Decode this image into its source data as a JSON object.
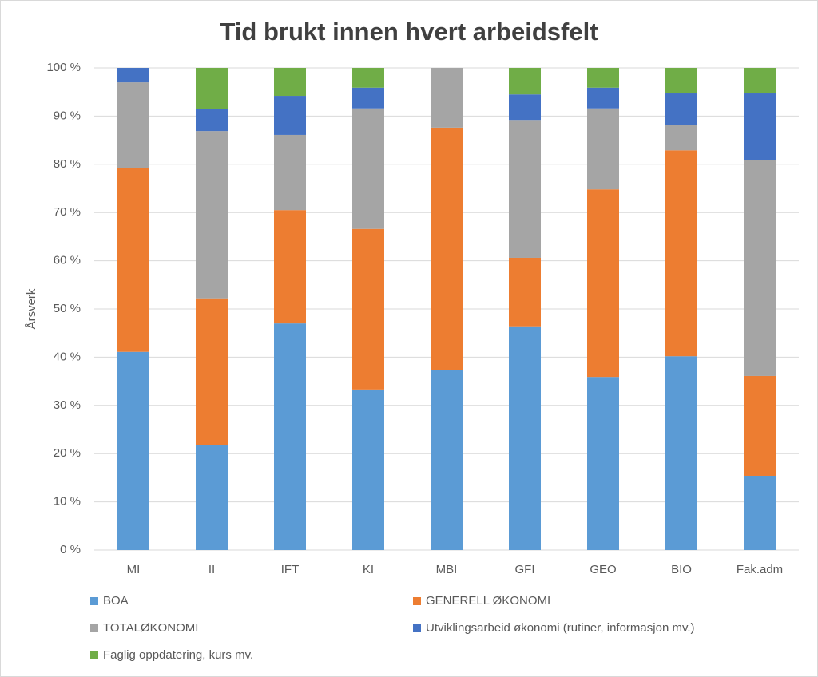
{
  "chart_data": {
    "type": "stacked-bar",
    "title": "Tid brukt innen hvert arbeidsfelt",
    "y_label": "Årsverk",
    "categories": [
      "MI",
      "II",
      "IFT",
      "KI",
      "MBI",
      "GFI",
      "GEO",
      "BIO",
      "Fak.adm"
    ],
    "series": [
      {
        "name": "BOA",
        "color": "#5b9bd5",
        "values": [
          41.1,
          21.7,
          47.0,
          33.3,
          37.4,
          46.4,
          35.9,
          40.2,
          15.4
        ]
      },
      {
        "name": "GENERELL ØKONOMI",
        "color": "#ed7d31",
        "values": [
          38.2,
          30.5,
          23.5,
          33.3,
          50.2,
          14.2,
          38.9,
          42.7,
          20.7
        ]
      },
      {
        "name": "TOTALØKONOMI",
        "color": "#a5a5a5",
        "values": [
          17.7,
          34.7,
          15.6,
          25.0,
          12.4,
          28.6,
          16.8,
          5.3,
          44.7
        ]
      },
      {
        "name": "Utviklingsarbeid økonomi (rutiner, informasjon mv.)",
        "color": "#4472c4",
        "values": [
          3.0,
          4.5,
          8.1,
          4.3,
          0,
          5.3,
          4.3,
          6.5,
          13.9
        ]
      },
      {
        "name": "Faglig oppdatering, kurs mv.",
        "color": "#70ad47",
        "values": [
          0,
          8.6,
          5.8,
          4.1,
          0,
          5.5,
          4.1,
          5.3,
          5.3
        ]
      }
    ],
    "ylim": [
      0,
      100
    ],
    "yticks": [
      {
        "value": 0,
        "label": "0 %"
      },
      {
        "value": 10,
        "label": "10 %"
      },
      {
        "value": 20,
        "label": "20 %"
      },
      {
        "value": 30,
        "label": "30 %"
      },
      {
        "value": 40,
        "label": "40 %"
      },
      {
        "value": 50,
        "label": "50 %"
      },
      {
        "value": 60,
        "label": "60 %"
      },
      {
        "value": 70,
        "label": "70 %"
      },
      {
        "value": 80,
        "label": "80 %"
      },
      {
        "value": 90,
        "label": "90 %"
      },
      {
        "value": 100,
        "label": "100 %"
      }
    ],
    "grid": true
  }
}
